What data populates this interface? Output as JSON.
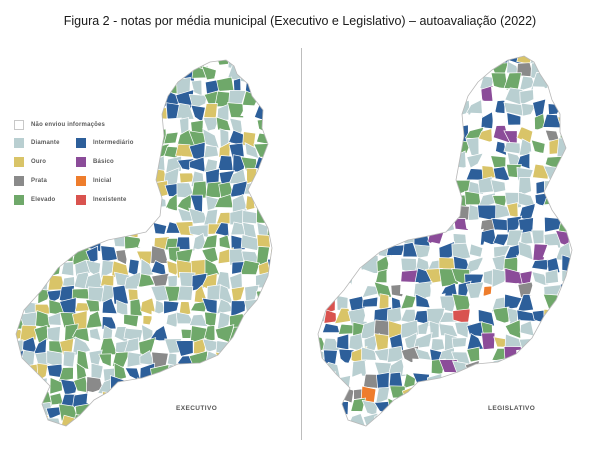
{
  "figure": {
    "title": "Figura 2 - notas por média municipal (Executivo e Legislativo) – autoavaliação (2022)"
  },
  "legend": {
    "none": {
      "label": "Não enviou informações",
      "color": "#ffffff"
    },
    "items": [
      {
        "label": "Diamante",
        "color": "#b9cfd1"
      },
      {
        "label": "Intermediário",
        "color": "#2d5f9a"
      },
      {
        "label": "Ouro",
        "color": "#d9c468"
      },
      {
        "label": "Básico",
        "color": "#8b4c99"
      },
      {
        "label": "Prata",
        "color": "#8a8a8a"
      },
      {
        "label": "Inicial",
        "color": "#ee7d2c"
      },
      {
        "label": "Elevado",
        "color": "#6fa86a"
      },
      {
        "label": "Inexistente",
        "color": "#d9534f"
      }
    ]
  },
  "maps": {
    "executivo": {
      "label": "EXECUTIVO",
      "share": {
        "Diamante": 0.34,
        "Elevado": 0.28,
        "Intermediário": 0.15,
        "Ouro": 0.13,
        "Prata": 0.03,
        "Não enviou informações": 0.07
      }
    },
    "legislativo": {
      "label": "LEGISLATIVO",
      "share": {
        "Diamante": 0.38,
        "Intermediário": 0.18,
        "Elevado": 0.1,
        "Ouro": 0.05,
        "Prata": 0.05,
        "Básico": 0.04,
        "Inicial": 0.01,
        "Inexistente": 0.02,
        "Não enviou informações": 0.17
      }
    }
  }
}
